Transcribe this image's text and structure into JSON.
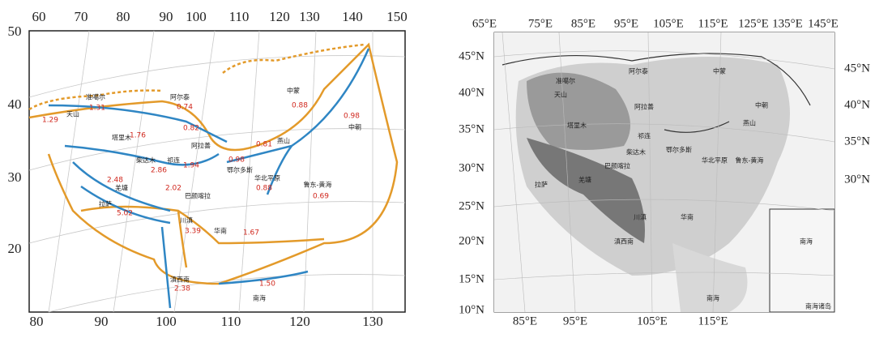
{
  "left_map": {
    "top_labels": [
      "60",
      "70",
      "80",
      "90",
      "100",
      "110",
      "120",
      "130",
      "140",
      "150"
    ],
    "bottom_labels": [
      "80",
      "90",
      "100",
      "110",
      "120",
      "130"
    ],
    "left_labels": [
      "50",
      "40",
      "30",
      "20"
    ],
    "place_names": [
      "天山",
      "准噶尔",
      "阿尔泰",
      "塔里木",
      "阿拉善",
      "柴达木",
      "祁连",
      "巴颜喀拉",
      "羌塘",
      "拉萨",
      "川滇",
      "华南",
      "滇西南",
      "南海",
      "中蒙",
      "中朝",
      "燕山",
      "鄂尔多斯",
      "华北平原",
      "鲁东-黄海"
    ],
    "values": [
      "1.29",
      "1.31",
      "0.74",
      "1.76",
      "0.82",
      "2.86",
      "1.94",
      "2.02",
      "2.48",
      "5.02",
      "3.39",
      "1.67",
      "2.38",
      "1.50",
      "0.88",
      "0.98",
      "0.81",
      "0.98",
      "0.88",
      "0.69"
    ]
  },
  "right_map": {
    "top_labels": [
      "65°E",
      "75°E",
      "85°E",
      "95°E",
      "105°E",
      "115°E",
      "125°E",
      "135°E",
      "145°E"
    ],
    "bottom_labels": [
      "85°E",
      "95°E",
      "105°E",
      "115°E"
    ],
    "left_labels": [
      "45°N",
      "40°N",
      "35°N",
      "30°N",
      "25°N",
      "20°N",
      "15°N",
      "10°N"
    ],
    "right_labels": [
      "45°N",
      "40°N",
      "35°N",
      "30°N"
    ],
    "place_names": [
      "准噶尔",
      "天山",
      "阿尔泰",
      "中蒙",
      "阿拉善",
      "塔里木",
      "中朝",
      "燕山",
      "祁连",
      "柴达木",
      "鄂尔多斯",
      "巴颜喀拉",
      "华北平原",
      "鲁东-黄海",
      "羌塘",
      "拉萨",
      "川滇",
      "华南",
      "滇西南",
      "南海"
    ],
    "inset_labels": [
      "南海",
      "南海诸岛"
    ]
  }
}
